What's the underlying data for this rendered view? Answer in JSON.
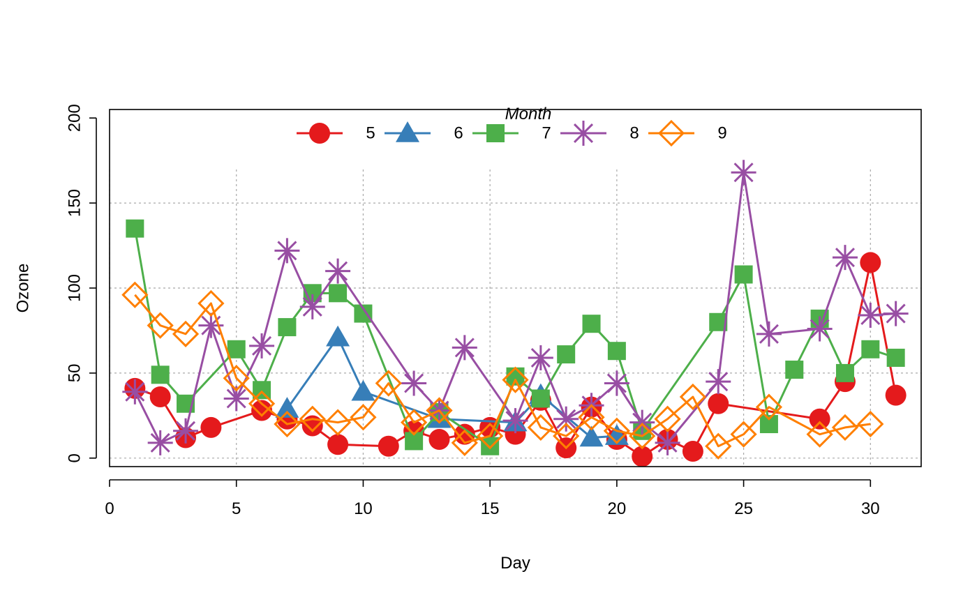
{
  "chart_data": {
    "type": "line",
    "xlabel": "Day",
    "ylabel": "Ozone",
    "xlim": [
      0,
      32
    ],
    "ylim": [
      -5,
      205
    ],
    "x_ticks": [
      "0",
      "5",
      "10",
      "15",
      "20",
      "25",
      "30"
    ],
    "y_ticks": [
      "0",
      "50",
      "100",
      "150",
      "200"
    ],
    "grid": true,
    "legend": {
      "title": "Month",
      "placement": "top-center",
      "orientation": "horizontal"
    },
    "series": [
      {
        "name": "5",
        "color": "#E41A1C",
        "marker": "circle",
        "points": [
          [
            1,
            41
          ],
          [
            2,
            36
          ],
          [
            3,
            12
          ],
          [
            4,
            18
          ],
          [
            6,
            28
          ],
          [
            7,
            23
          ],
          [
            8,
            19
          ],
          [
            9,
            8
          ],
          [
            11,
            7
          ],
          [
            12,
            16
          ],
          [
            13,
            11
          ],
          [
            14,
            14
          ],
          [
            15,
            18
          ],
          [
            16,
            14
          ],
          [
            17,
            34
          ],
          [
            18,
            6
          ],
          [
            19,
            30
          ],
          [
            20,
            11
          ],
          [
            21,
            1
          ],
          [
            22,
            11
          ],
          [
            23,
            4
          ],
          [
            24,
            32
          ],
          [
            28,
            23
          ],
          [
            29,
            45
          ],
          [
            30,
            115
          ],
          [
            31,
            37
          ]
        ]
      },
      {
        "name": "6",
        "color": "#377EB8",
        "marker": "triangle",
        "points": [
          [
            7,
            29
          ],
          [
            9,
            71
          ],
          [
            10,
            39
          ],
          [
            13,
            23
          ],
          [
            16,
            21
          ],
          [
            17,
            37
          ],
          [
            19,
            12
          ],
          [
            20,
            13
          ]
        ]
      },
      {
        "name": "7",
        "color": "#4DAF4A",
        "marker": "square",
        "points": [
          [
            1,
            135
          ],
          [
            2,
            49
          ],
          [
            3,
            32
          ],
          [
            5,
            64
          ],
          [
            6,
            40
          ],
          [
            7,
            77
          ],
          [
            8,
            97
          ],
          [
            9,
            97
          ],
          [
            10,
            85
          ],
          [
            12,
            10
          ],
          [
            13,
            27
          ],
          [
            15,
            7
          ],
          [
            16,
            48
          ],
          [
            17,
            35
          ],
          [
            18,
            61
          ],
          [
            19,
            79
          ],
          [
            20,
            63
          ],
          [
            21,
            16
          ],
          [
            24,
            80
          ],
          [
            25,
            108
          ],
          [
            26,
            20
          ],
          [
            27,
            52
          ],
          [
            28,
            82
          ],
          [
            29,
            50
          ],
          [
            30,
            64
          ],
          [
            31,
            59
          ]
        ]
      },
      {
        "name": "8",
        "color": "#984EA3",
        "marker": "star",
        "points": [
          [
            1,
            39
          ],
          [
            2,
            9
          ],
          [
            3,
            16
          ],
          [
            4,
            78
          ],
          [
            5,
            35
          ],
          [
            6,
            66
          ],
          [
            7,
            122
          ],
          [
            8,
            89
          ],
          [
            9,
            110
          ],
          [
            12,
            44
          ],
          [
            13,
            28
          ],
          [
            14,
            65
          ],
          [
            16,
            22
          ],
          [
            17,
            59
          ],
          [
            18,
            23
          ],
          [
            19,
            31
          ],
          [
            20,
            44
          ],
          [
            21,
            21
          ],
          [
            22,
            9
          ],
          [
            24,
            45
          ],
          [
            25,
            168
          ],
          [
            26,
            73
          ],
          [
            28,
            76
          ],
          [
            29,
            118
          ],
          [
            30,
            84
          ],
          [
            31,
            85
          ]
        ]
      },
      {
        "name": "9",
        "color": "#FF7F00",
        "marker": "diamond",
        "points": [
          [
            1,
            96
          ],
          [
            2,
            78
          ],
          [
            3,
            73
          ],
          [
            4,
            91
          ],
          [
            5,
            47
          ],
          [
            6,
            32
          ],
          [
            7,
            20
          ],
          [
            8,
            23
          ],
          [
            9,
            21
          ],
          [
            10,
            24
          ],
          [
            11,
            44
          ],
          [
            12,
            21
          ],
          [
            13,
            28
          ],
          [
            14,
            9
          ],
          [
            15,
            13
          ],
          [
            16,
            46
          ],
          [
            17,
            18
          ],
          [
            18,
            13
          ],
          [
            19,
            24
          ],
          [
            20,
            16
          ],
          [
            21,
            13
          ],
          [
            22,
            23
          ],
          [
            23,
            36
          ],
          [
            24,
            7
          ],
          [
            25,
            14
          ],
          [
            26,
            30
          ],
          [
            28,
            14
          ],
          [
            29,
            18
          ],
          [
            30,
            20
          ]
        ]
      }
    ]
  }
}
